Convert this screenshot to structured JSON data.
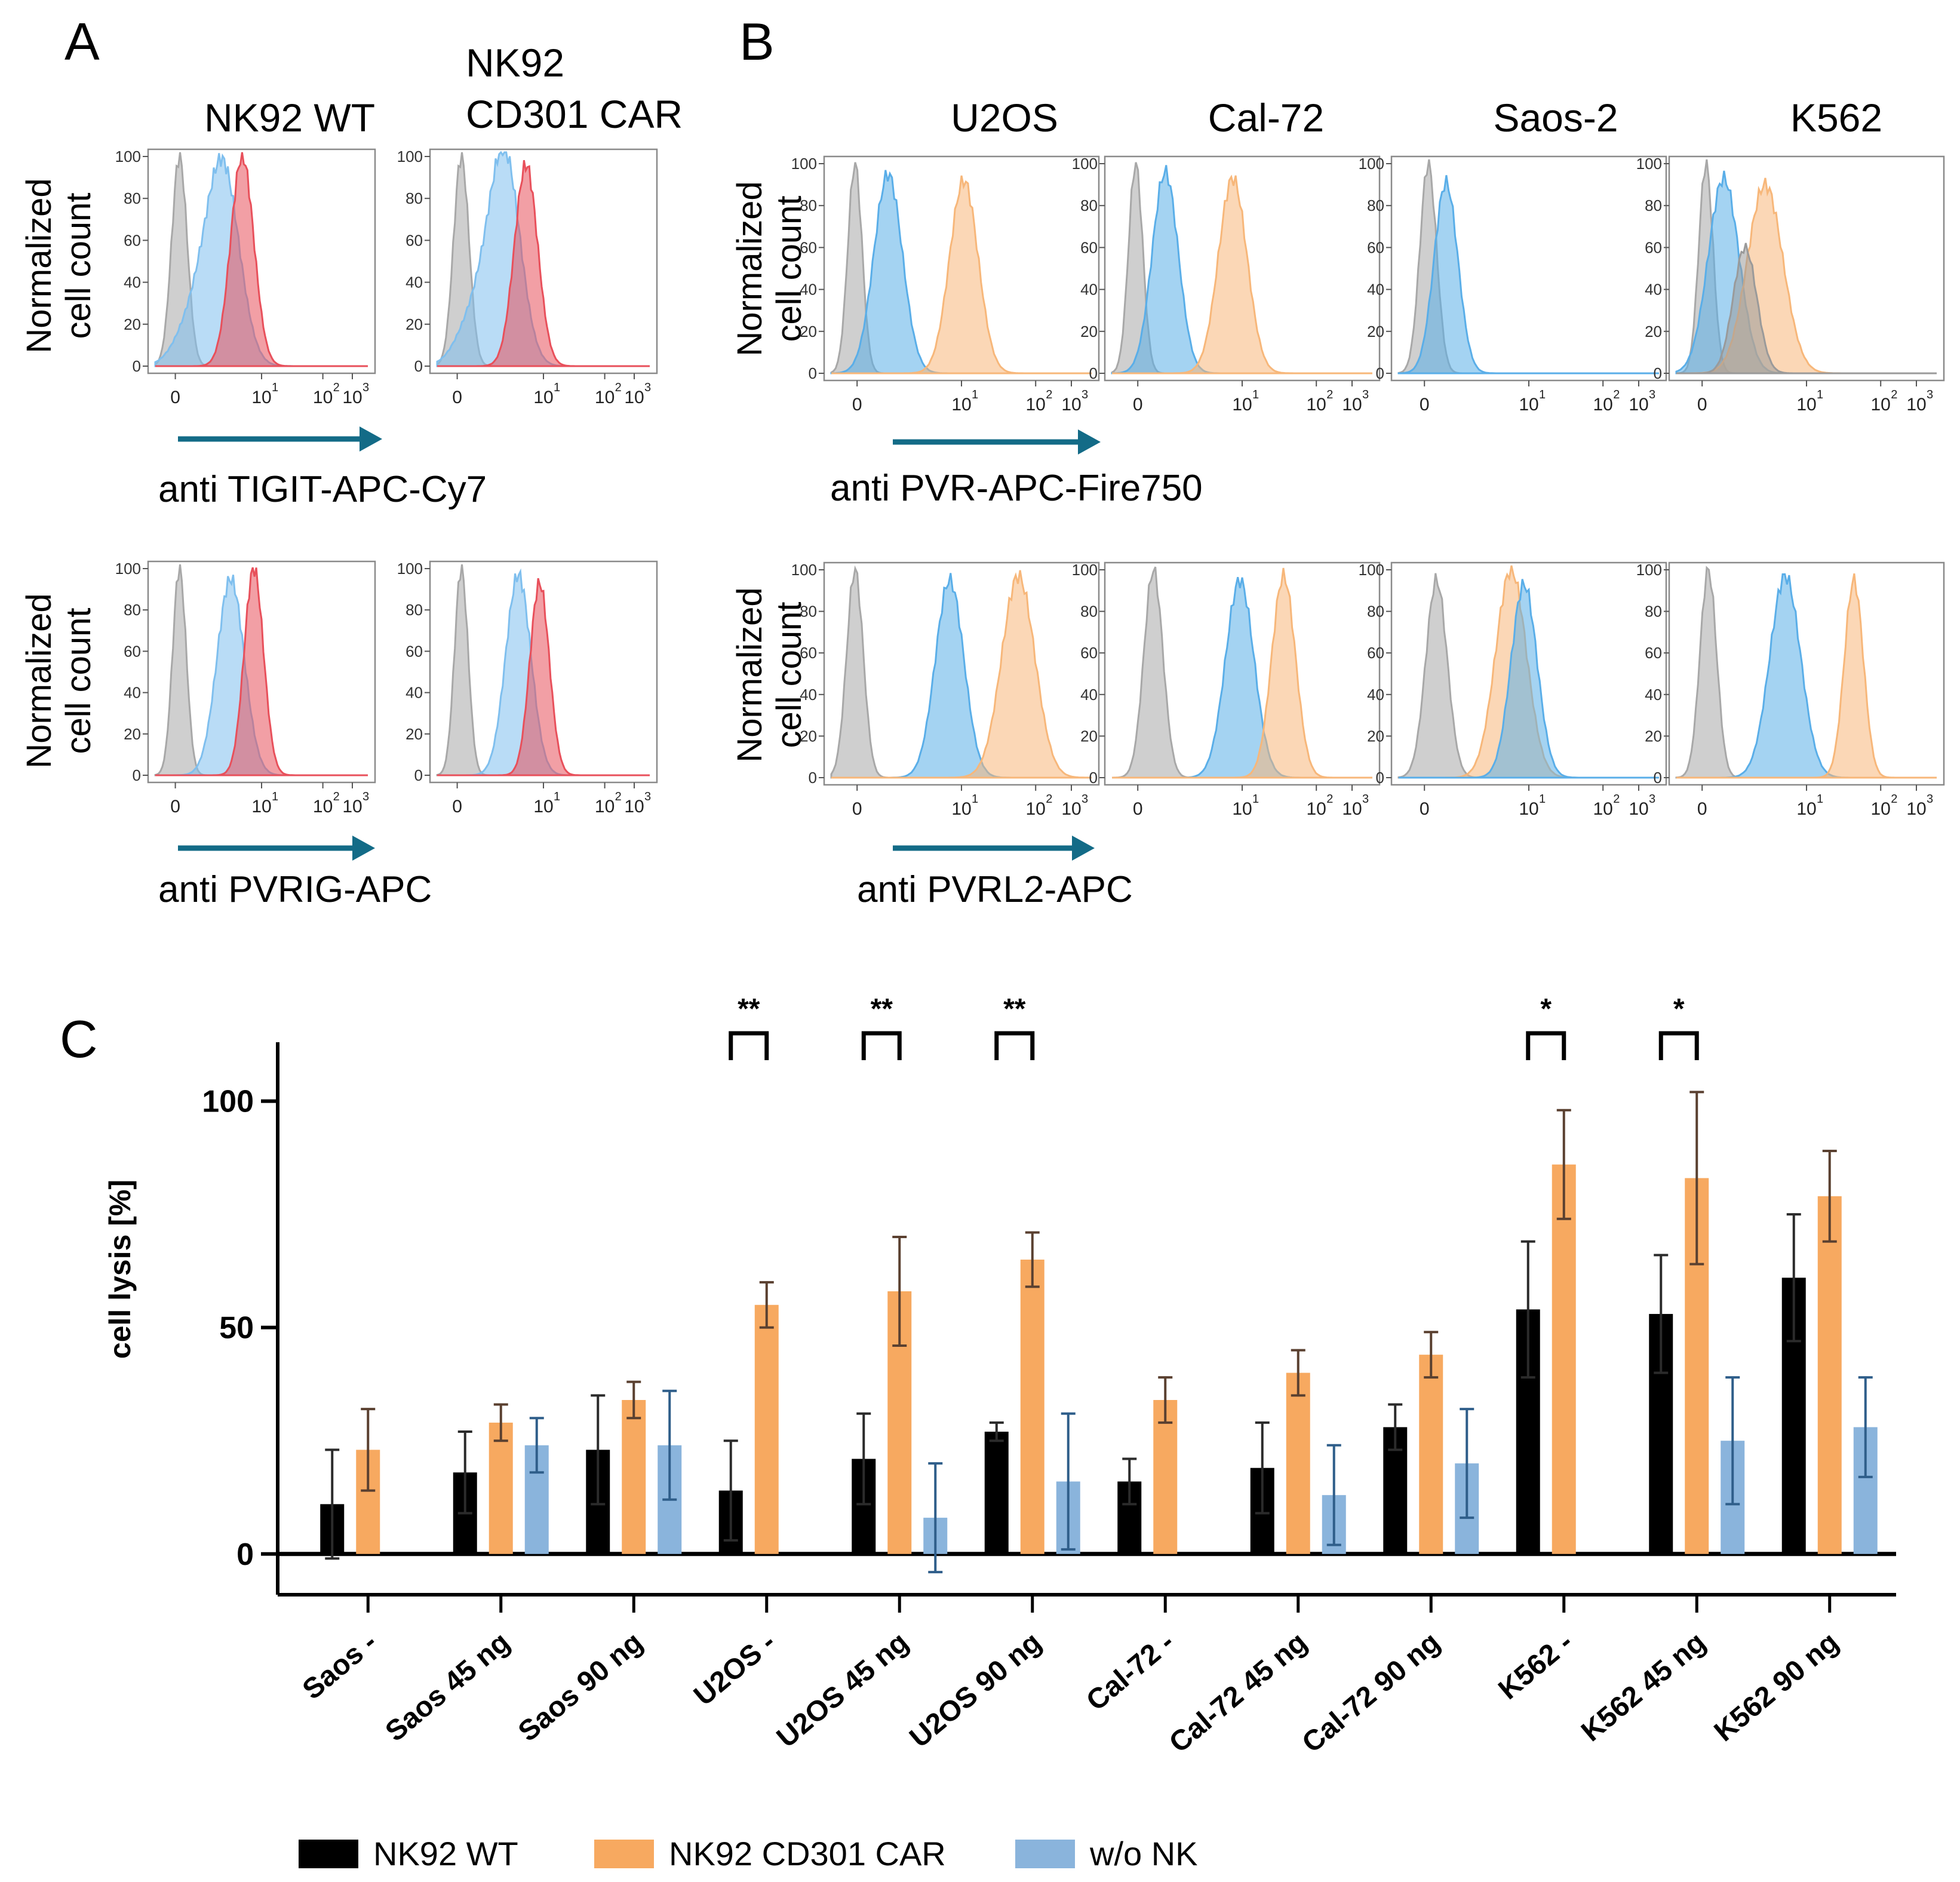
{
  "panels": {
    "A": {
      "letter": "A",
      "col_titles": [
        "NK92 WT",
        "NK92",
        "CD301 CAR"
      ],
      "row_axis_labels": [
        "anti TIGIT-APC-Cy7",
        "anti PVRIG-APC"
      ],
      "histograms": [
        {
          "row": 0,
          "col": 0,
          "curves": [
            {
              "color": "#a8a8a8",
              "mu": 0.05,
              "sigma": 0.08,
              "h": 1.0
            },
            {
              "color": "#7fbfee",
              "mu": 0.5,
              "sigma": 0.17,
              "h": 0.93,
              "shoulder": 0.22
            },
            {
              "color": "#e8505b",
              "mu": 0.7,
              "sigma": 0.12,
              "h": 1.0
            }
          ]
        },
        {
          "row": 0,
          "col": 1,
          "curves": [
            {
              "color": "#a8a8a8",
              "mu": 0.05,
              "sigma": 0.08,
              "h": 1.0
            },
            {
              "color": "#7fbfee",
              "mu": 0.5,
              "sigma": 0.16,
              "h": 0.98,
              "shoulder": 0.25
            },
            {
              "color": "#e8505b",
              "mu": 0.72,
              "sigma": 0.12,
              "h": 0.96
            }
          ]
        },
        {
          "row": 1,
          "col": 0,
          "curves": [
            {
              "color": "#a8a8a8",
              "mu": 0.05,
              "sigma": 0.07,
              "h": 1.0
            },
            {
              "color": "#7fbfee",
              "mu": 0.58,
              "sigma": 0.14,
              "h": 0.95
            },
            {
              "color": "#e8505b",
              "mu": 0.82,
              "sigma": 0.1,
              "h": 1.0
            }
          ]
        },
        {
          "row": 1,
          "col": 1,
          "curves": [
            {
              "color": "#a8a8a8",
              "mu": 0.05,
              "sigma": 0.07,
              "h": 1.0
            },
            {
              "color": "#7fbfee",
              "mu": 0.64,
              "sigma": 0.13,
              "h": 0.97
            },
            {
              "color": "#e8505b",
              "mu": 0.86,
              "sigma": 0.1,
              "h": 0.93
            }
          ]
        }
      ]
    },
    "B": {
      "letter": "B",
      "col_titles": [
        "U2OS",
        "Cal-72",
        "Saos-2",
        "K562"
      ],
      "row_axis_labels": [
        "anti PVR-APC-Fire750",
        "anti PVRL2-APC"
      ],
      "histograms": [
        {
          "row": 0,
          "col": 0,
          "curves": [
            {
              "color": "#a8a8a8",
              "mu": 0.0,
              "sigma": 0.06,
              "h": 1.0
            },
            {
              "color": "#5aaee8",
              "mu": 0.28,
              "sigma": 0.12,
              "h": 0.95
            },
            {
              "color": "#f7b77a",
              "mu": 0.92,
              "sigma": 0.12,
              "h": 0.92
            }
          ]
        },
        {
          "row": 0,
          "col": 1,
          "curves": [
            {
              "color": "#a8a8a8",
              "mu": 0.0,
              "sigma": 0.06,
              "h": 1.0
            },
            {
              "color": "#5aaee8",
              "mu": 0.25,
              "sigma": 0.11,
              "h": 0.96
            },
            {
              "color": "#f7b77a",
              "mu": 0.82,
              "sigma": 0.12,
              "h": 0.93
            }
          ]
        },
        {
          "row": 0,
          "col": 2,
          "curves": [
            {
              "color": "#a8a8a8",
              "mu": 0.05,
              "sigma": 0.07,
              "h": 1.0
            },
            {
              "color": "#5aaee8",
              "mu": 0.2,
              "sigma": 0.1,
              "h": 0.91
            }
          ]
        },
        {
          "row": 0,
          "col": 3,
          "curves": [
            {
              "color": "#a8a8a8",
              "mu": 0.05,
              "sigma": 0.06,
              "h": 1.0
            },
            {
              "color": "#5aaee8",
              "mu": 0.2,
              "sigma": 0.13,
              "h": 0.93
            },
            {
              "color": "#f7b77a",
              "mu": 0.55,
              "sigma": 0.15,
              "h": 0.9
            },
            {
              "color": "#9a9a9a",
              "mu": 0.38,
              "sigma": 0.1,
              "h": 0.6
            }
          ]
        },
        {
          "row": 1,
          "col": 0,
          "curves": [
            {
              "color": "#a8a8a8",
              "mu": 0.0,
              "sigma": 0.07,
              "h": 1.0
            },
            {
              "color": "#5aaee8",
              "mu": 0.8,
              "sigma": 0.12,
              "h": 0.95
            },
            {
              "color": "#f7b77a",
              "mu": 1.38,
              "sigma": 0.14,
              "h": 0.97
            }
          ]
        },
        {
          "row": 1,
          "col": 1,
          "curves": [
            {
              "color": "#a8a8a8",
              "mu": 0.15,
              "sigma": 0.08,
              "h": 1.0
            },
            {
              "color": "#5aaee8",
              "mu": 0.88,
              "sigma": 0.12,
              "h": 0.95
            },
            {
              "color": "#f7b77a",
              "mu": 1.25,
              "sigma": 0.1,
              "h": 0.97
            }
          ]
        },
        {
          "row": 1,
          "col": 2,
          "curves": [
            {
              "color": "#a8a8a8",
              "mu": 0.12,
              "sigma": 0.09,
              "h": 0.95
            },
            {
              "color": "#f7b77a",
              "mu": 0.75,
              "sigma": 0.13,
              "h": 1.0
            },
            {
              "color": "#5aaee8",
              "mu": 0.86,
              "sigma": 0.11,
              "h": 0.93
            }
          ]
        },
        {
          "row": 1,
          "col": 3,
          "curves": [
            {
              "color": "#a8a8a8",
              "mu": 0.07,
              "sigma": 0.07,
              "h": 1.0
            },
            {
              "color": "#5aaee8",
              "mu": 0.72,
              "sigma": 0.13,
              "h": 0.97
            },
            {
              "color": "#f7b77a",
              "mu": 1.3,
              "sigma": 0.08,
              "h": 0.95
            }
          ]
        }
      ]
    },
    "hist_axis": {
      "y_label_line1": "Normalized",
      "y_label_line2": "cell count",
      "y_ticks": [
        "0",
        "20",
        "40",
        "60",
        "80",
        "100"
      ],
      "x_ticks": [
        "0",
        "10",
        "10",
        "10"
      ],
      "x_tick_exps": [
        "1",
        "2",
        "3"
      ]
    },
    "C": {
      "letter": "C"
    }
  },
  "chart_data": {
    "type": "bar",
    "title": "",
    "xlabel": "",
    "ylabel": "cell lysis [%]",
    "ylim": [
      -9,
      113
    ],
    "y_ticks": [
      0,
      50,
      100
    ],
    "categories": [
      "Saos -",
      "Saos 45 ng",
      "Saos 90 ng",
      "U2OS -",
      "U2OS 45 ng",
      "U2OS 90 ng",
      "Cal-72 -",
      "Cal-72 45 ng",
      "Cal-72 90 ng",
      "K562 -",
      "K562 45 ng",
      "K562 90 ng"
    ],
    "series": [
      {
        "name": "NK92 WT",
        "color": "#000000",
        "errcolor": "#2b2b2b",
        "values": [
          11,
          18,
          23,
          14,
          21,
          27,
          16,
          19,
          28,
          54,
          53,
          61
        ],
        "errors": [
          12,
          9,
          12,
          11,
          10,
          2,
          5,
          10,
          5,
          15,
          13,
          14
        ]
      },
      {
        "name": "NK92 CD301 CAR",
        "color": "#f7a960",
        "errcolor": "#5a4030",
        "values": [
          23,
          29,
          34,
          55,
          58,
          65,
          34,
          40,
          44,
          86,
          83,
          79
        ],
        "errors": [
          9,
          4,
          4,
          5,
          12,
          6,
          5,
          5,
          5,
          12,
          19,
          10
        ]
      },
      {
        "name": "w/o NK",
        "color": "#8ab4dc",
        "errcolor": "#2f5e8a",
        "values": [
          null,
          24,
          24,
          null,
          8,
          16,
          null,
          13,
          20,
          null,
          25,
          28
        ],
        "errors": [
          null,
          6,
          12,
          null,
          12,
          15,
          null,
          11,
          12,
          null,
          14,
          11
        ]
      }
    ],
    "significance": [
      {
        "category": "U2OS -",
        "label": "**"
      },
      {
        "category": "U2OS 45 ng",
        "label": "**"
      },
      {
        "category": "U2OS 90 ng",
        "label": "**"
      },
      {
        "category": "K562 -",
        "label": "*"
      },
      {
        "category": "K562 45 ng",
        "label": "*"
      }
    ],
    "legend": {
      "placement": "bottom",
      "entries": [
        "NK92 WT",
        "NK92 CD301 CAR",
        "w/o NK"
      ]
    }
  }
}
